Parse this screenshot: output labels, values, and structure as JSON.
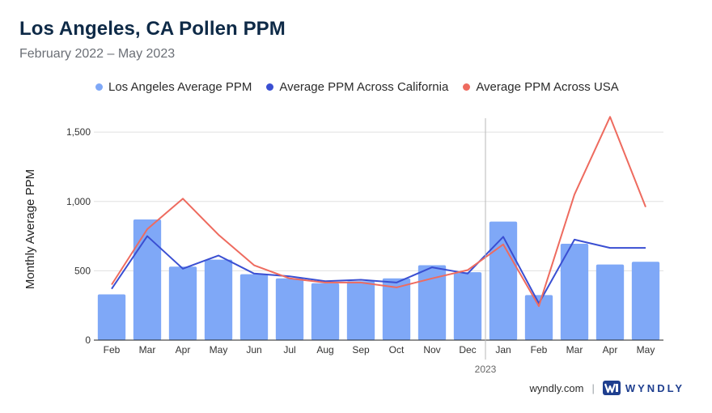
{
  "header": {
    "title": "Los Angeles, CA Pollen PPM",
    "subtitle": "February 2022 – May 2023"
  },
  "footer": {
    "site": "wyndly.com",
    "separator": "|",
    "brand": "WYNDLY"
  },
  "colors": {
    "la_bar": "#7fa8f7",
    "california": "#3a4fd2",
    "usa": "#ee6b5f",
    "grid": "#e0e0e0",
    "divider": "#b9b9b9"
  },
  "chart_data": {
    "type": "bar",
    "ylabel": "Monthly Average PPM",
    "ylim": [
      0,
      1600
    ],
    "yticks": [
      0,
      500,
      1000,
      1500
    ],
    "ytick_labels": [
      "0",
      "500",
      "1,000",
      "1,500"
    ],
    "categories": [
      "Feb",
      "Mar",
      "Apr",
      "May",
      "Jun",
      "Jul",
      "Aug",
      "Sep",
      "Oct",
      "Nov",
      "Dec",
      "Jan",
      "Feb",
      "Mar",
      "Apr",
      "May"
    ],
    "year_marker": {
      "label": "2023",
      "before_index": 11
    },
    "grid": true,
    "legend_position": "top",
    "series": [
      {
        "name": "Los Angeles Average PPM",
        "kind": "bar",
        "values": [
          330,
          870,
          530,
          580,
          475,
          445,
          410,
          425,
          445,
          540,
          490,
          855,
          325,
          695,
          545,
          565
        ]
      },
      {
        "name": "Average PPM Across California",
        "kind": "line",
        "values": [
          370,
          750,
          515,
          610,
          480,
          460,
          425,
          435,
          415,
          525,
          480,
          745,
          265,
          725,
          665,
          665
        ]
      },
      {
        "name": "Average PPM Across USA",
        "kind": "line",
        "values": [
          400,
          800,
          1020,
          760,
          540,
          445,
          415,
          415,
          380,
          445,
          505,
          690,
          245,
          1050,
          1610,
          960
        ]
      }
    ]
  }
}
